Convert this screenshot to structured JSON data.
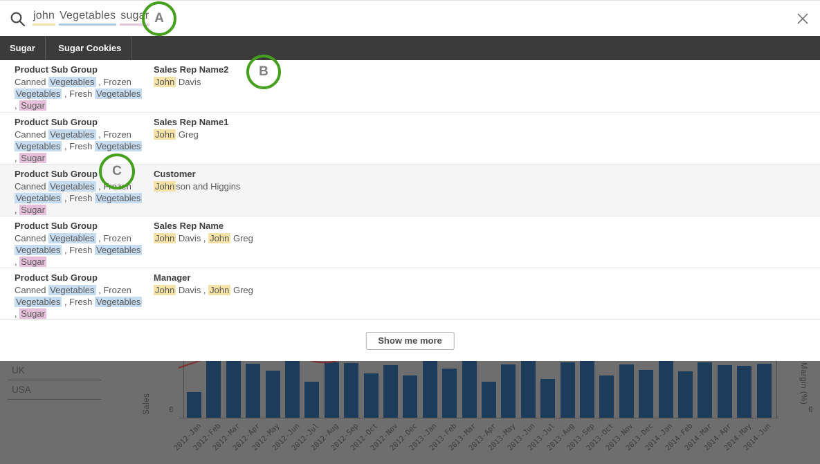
{
  "search": {
    "terms": [
      {
        "text": "john",
        "underline_color": "#f0e2a8"
      },
      {
        "text": "Vegetables",
        "underline_color": "#accbe6"
      },
      {
        "text": "sugar",
        "underline_color": "#e3c7dc"
      }
    ]
  },
  "icons": {
    "search": "magnifier-icon",
    "close": "x-icon"
  },
  "annotations": [
    {
      "label": "A"
    },
    {
      "label": "B"
    },
    {
      "label": "C"
    }
  ],
  "tabs": [
    {
      "label": "Sugar"
    },
    {
      "label": "Sugar Cookies"
    }
  ],
  "results": [
    {
      "left": {
        "title": "Product Sub Group",
        "segments": [
          {
            "text": "Canned "
          },
          {
            "text": "Vegetables",
            "h": "blue"
          },
          {
            "text": " , Frozen "
          },
          {
            "text": "Vegetables",
            "h": "blue"
          },
          {
            "text": " , Fresh "
          },
          {
            "text": "Vegetables",
            "h": "blue"
          },
          {
            "text": " , "
          },
          {
            "text": "Sugar",
            "h": "pink"
          }
        ]
      },
      "right": {
        "title": "Sales Rep Name2",
        "segments": [
          {
            "text": "John",
            "h": "yellow"
          },
          {
            "text": " Davis"
          }
        ]
      }
    },
    {
      "left": {
        "title": "Product Sub Group",
        "segments": [
          {
            "text": "Canned "
          },
          {
            "text": "Vegetables",
            "h": "blue"
          },
          {
            "text": " , Frozen "
          },
          {
            "text": "Vegetables",
            "h": "blue"
          },
          {
            "text": " , Fresh "
          },
          {
            "text": "Vegetables",
            "h": "blue"
          },
          {
            "text": " , "
          },
          {
            "text": "Sugar",
            "h": "pink"
          }
        ]
      },
      "right": {
        "title": "Sales Rep Name1",
        "segments": [
          {
            "text": "John",
            "h": "yellow"
          },
          {
            "text": " Greg"
          }
        ]
      }
    },
    {
      "left": {
        "title": "Product Sub Group",
        "segments": [
          {
            "text": "Canned "
          },
          {
            "text": "Vegetables",
            "h": "blue"
          },
          {
            "text": " , Frozen "
          },
          {
            "text": "Vegetables",
            "h": "blue"
          },
          {
            "text": " , Fresh "
          },
          {
            "text": "Vegetables",
            "h": "blue"
          },
          {
            "text": " , "
          },
          {
            "text": "Sugar",
            "h": "pink"
          }
        ]
      },
      "right": {
        "title": "Customer",
        "segments": [
          {
            "text": "John",
            "h": "yellow"
          },
          {
            "text": "son and Higgins"
          }
        ]
      }
    },
    {
      "left": {
        "title": "Product Sub Group",
        "segments": [
          {
            "text": "Canned "
          },
          {
            "text": "Vegetables",
            "h": "blue"
          },
          {
            "text": " , Frozen "
          },
          {
            "text": "Vegetables",
            "h": "blue"
          },
          {
            "text": " , Fresh "
          },
          {
            "text": "Vegetables",
            "h": "blue"
          },
          {
            "text": " , "
          },
          {
            "text": "Sugar",
            "h": "pink"
          }
        ]
      },
      "right": {
        "title": "Sales Rep Name",
        "segments": [
          {
            "text": "John",
            "h": "yellow"
          },
          {
            "text": " Davis , "
          },
          {
            "text": "John",
            "h": "yellow"
          },
          {
            "text": " Greg"
          }
        ]
      }
    },
    {
      "left": {
        "title": "Product Sub Group",
        "segments": [
          {
            "text": "Canned "
          },
          {
            "text": "Vegetables",
            "h": "blue"
          },
          {
            "text": " , Frozen "
          },
          {
            "text": "Vegetables",
            "h": "blue"
          },
          {
            "text": " , Fresh "
          },
          {
            "text": "Vegetables",
            "h": "blue"
          },
          {
            "text": " , "
          },
          {
            "text": "Sugar",
            "h": "pink"
          }
        ]
      },
      "right": {
        "title": "Manager",
        "segments": [
          {
            "text": "John",
            "h": "yellow"
          },
          {
            "text": " Davis , "
          },
          {
            "text": "John",
            "h": "yellow"
          },
          {
            "text": " Greg"
          }
        ]
      }
    }
  ],
  "footer": {
    "show_more_label": "Show me more"
  },
  "background_app": {
    "filter_items": [
      "UK",
      "USA"
    ]
  },
  "chart_data": {
    "type": "bar",
    "title": "",
    "ylabel": "Sales",
    "y2label": "Margin (%)",
    "y_tick_left": "0",
    "y_tick_right": "0",
    "note": "chart is partially occluded by search overlay; values are visible bar heights as % of visible plot area (bars at 100 are cropped at top)",
    "categories": [
      "2012-Jan",
      "2012-Feb",
      "2012-Mar",
      "2012-Apr",
      "2012-May",
      "2012-Jun",
      "2012-Jul",
      "2012-Aug",
      "2012-Sep",
      "2012-Oct",
      "2012-Nov",
      "2012-Dec",
      "2013-Jan",
      "2013-Feb",
      "2013-Mar",
      "2013-Apr",
      "2013-May",
      "2013-Jun",
      "2013-Jul",
      "2013-Aug",
      "2013-Sep",
      "2013-Oct",
      "2013-Nov",
      "2013-Dec",
      "2014-Jan",
      "2014-Feb",
      "2014-Mar",
      "2014-Apr",
      "2014-May",
      "2014-Jun"
    ],
    "series": [
      {
        "name": "Sales (visible height %)",
        "values": [
          45,
          100,
          100,
          95,
          83,
          100,
          63,
          98,
          96,
          78,
          93,
          74,
          100,
          87,
          100,
          63,
          94,
          100,
          68,
          98,
          100,
          74,
          94,
          84,
          100,
          82,
          98,
          93,
          92,
          95
        ]
      },
      {
        "name": "Margin (%) line",
        "style": "line",
        "color": "#7e3336",
        "visibility": "mostly cropped above overlay; dips visible near 2012-Jan and 2012-Sep/Oct"
      }
    ],
    "ylim": [
      0,
      null
    ],
    "legend": "none",
    "grid": false
  },
  "colors": {
    "accent_green": "#45a01d",
    "highlight_yellow": "#f5e2a6",
    "highlight_blue": "#c6dcf0",
    "highlight_pink": "#e6c0db",
    "tab_bar_dark": "#3b3b3b",
    "bar_navy": "#1d3b5a",
    "overlay_gray": "#6e6e6e",
    "line_red": "#7e3336"
  }
}
